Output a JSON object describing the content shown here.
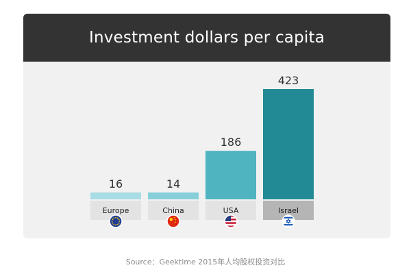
{
  "chart_data": {
    "type": "bar",
    "title": "Investment dollars per capita",
    "categories": [
      "Europe",
      "China",
      "USA",
      "Israel"
    ],
    "values": [
      16,
      14,
      186,
      423
    ],
    "bar_colors": [
      "#a9dde6",
      "#86cfd9",
      "#4fb3c0",
      "#218a94"
    ],
    "label_bg_colors": [
      "#e3e3e3",
      "#e3e3e3",
      "#e3e3e3",
      "#b5b5b5"
    ],
    "flag_icons": [
      "eu-flag-icon",
      "china-flag-icon",
      "usa-flag-icon",
      "israel-flag-icon"
    ],
    "ylim": [
      0,
      423
    ],
    "grid": false,
    "xlabel": "",
    "ylabel": ""
  },
  "footer": {
    "source": "Source：Geektime 2015年人均股权投资对比"
  },
  "colors": {
    "header_bg": "#333333",
    "card_bg": "#f1f1f1",
    "value_text": "#333333"
  }
}
